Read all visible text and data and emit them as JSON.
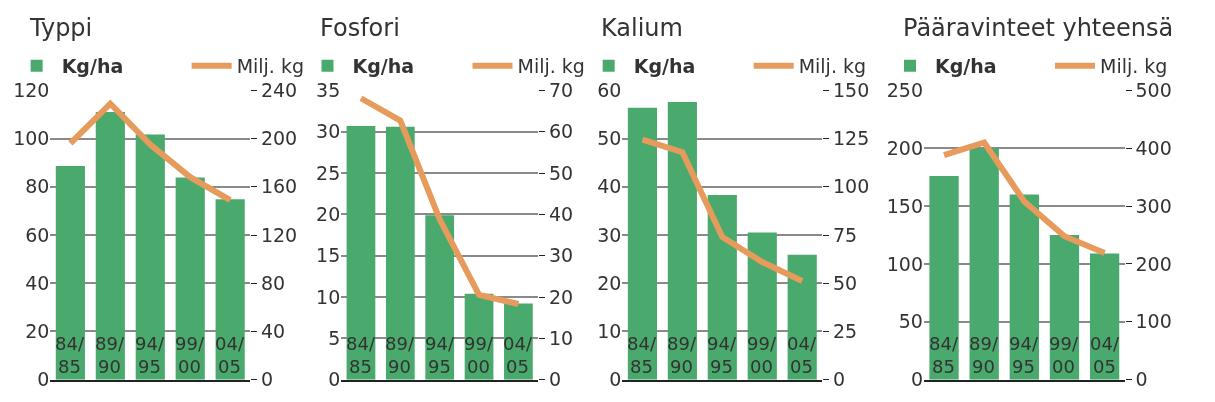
{
  "chart_data": [
    {
      "type": "bar",
      "title": "Typpi",
      "categories": [
        "84/85",
        "89/90",
        "94/95",
        "99/00",
        "04/05"
      ],
      "series": [
        {
          "name": "Kg/ha",
          "color": "#4aa96c",
          "values": [
            88.6,
            111,
            101.7,
            83.9,
            74.8
          ]
        },
        {
          "name": "Milj. kg",
          "type": "line",
          "axis": "y2",
          "color": "#e69a5c",
          "values": [
            196,
            229,
            195,
            168,
            149
          ]
        }
      ],
      "ylim": [
        0,
        120
      ],
      "yticks": [
        0,
        20,
        40,
        60,
        80,
        100,
        120
      ],
      "y2lim": [
        0,
        240
      ],
      "y2ticks": [
        0,
        40,
        80,
        120,
        160,
        200,
        240
      ],
      "grid": "y",
      "legend": "top"
    },
    {
      "type": "bar",
      "title": "Fosfori",
      "categories": [
        "84/85",
        "89/90",
        "94/95",
        "99/00",
        "04/05"
      ],
      "series": [
        {
          "name": "Kg/ha",
          "color": "#4aa96c",
          "values": [
            30.7,
            30.6,
            19.9,
            10.4,
            9.2
          ]
        },
        {
          "name": "Milj. kg",
          "type": "line",
          "axis": "y2",
          "color": "#e69a5c",
          "values": [
            68.1,
            62.7,
            38.8,
            20.5,
            18.3
          ]
        }
      ],
      "ylim": [
        0,
        35
      ],
      "yticks": [
        0,
        5,
        10,
        15,
        20,
        25,
        30,
        35
      ],
      "y2lim": [
        0,
        70
      ],
      "y2ticks": [
        0,
        10,
        20,
        30,
        40,
        50,
        60,
        70
      ],
      "grid": "y",
      "legend": "top"
    },
    {
      "type": "bar",
      "title": "Kalium",
      "categories": [
        "84/85",
        "89/90",
        "94/95",
        "99/00",
        "04/05"
      ],
      "series": [
        {
          "name": "Kg/ha",
          "color": "#4aa96c",
          "values": [
            56.4,
            57.6,
            38.3,
            30.5,
            25.9
          ]
        },
        {
          "name": "Milj. kg",
          "type": "line",
          "axis": "y2",
          "color": "#e69a5c",
          "values": [
            124.5,
            118,
            74,
            61,
            51.2
          ]
        }
      ],
      "ylim": [
        0,
        60
      ],
      "yticks": [
        0,
        10,
        20,
        30,
        40,
        50,
        60
      ],
      "y2lim": [
        0,
        150
      ],
      "y2ticks": [
        0,
        25,
        50,
        75,
        100,
        125,
        150
      ],
      "grid": "y",
      "legend": "top"
    },
    {
      "type": "bar",
      "title": "Pääravinteet yhteensä",
      "categories": [
        "84/85",
        "89/90",
        "94/95",
        "99/00",
        "04/05"
      ],
      "series": [
        {
          "name": "Kg/ha",
          "color": "#4aa96c",
          "values": [
            176,
            200,
            160,
            125,
            109
          ]
        },
        {
          "name": "Milj. kg",
          "type": "line",
          "axis": "y2",
          "color": "#e69a5c",
          "values": [
            388,
            410,
            308,
            248,
            219
          ]
        }
      ],
      "ylim": [
        0,
        250
      ],
      "yticks": [
        0,
        50,
        100,
        150,
        200,
        250
      ],
      "y2lim": [
        0,
        500
      ],
      "y2ticks": [
        0,
        100,
        200,
        300,
        400,
        500
      ],
      "grid": "y",
      "legend": "top"
    }
  ]
}
